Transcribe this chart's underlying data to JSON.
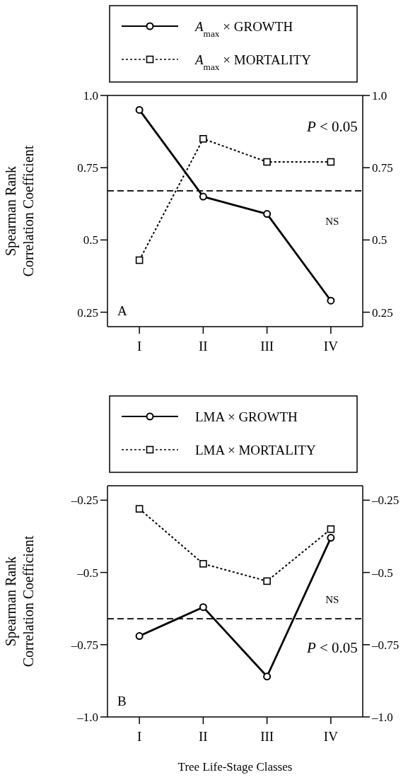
{
  "chart_data": [
    {
      "type": "line",
      "ylabel": "Spearman Rank\nCorrelation Coefficient",
      "categories": [
        "I",
        "II",
        "III",
        "IV"
      ],
      "series": [
        {
          "name": "A$_{max}$ × GROWTH",
          "color": "#000000",
          "values": [
            0.95,
            0.65,
            0.59,
            0.29
          ],
          "marker": "circle",
          "line_style": "solid"
        },
        {
          "name": "A$_{max}$ × MORTALITY",
          "color": "#000000",
          "values": [
            0.43,
            0.85,
            0.77,
            0.77
          ],
          "marker": "square",
          "line_style": "dotted"
        }
      ],
      "ylim": [
        0.2,
        1.0
      ],
      "yticks": [
        0.25,
        0.5,
        0.75,
        {
          "value": 1,
          "label": "1.0"
        }
      ],
      "y2lim": [
        0.2,
        1.0
      ],
      "y2ticks": [
        0.25,
        0.5,
        0.75,
        {
          "value": 1,
          "label": "1.0"
        }
      ],
      "ref_lines": [
        {
          "axis": "y",
          "value": 0.67,
          "color": "#000000",
          "line_style": "dashed"
        }
      ],
      "annotations": [
        "P < 0.05",
        "NS",
        "A"
      ],
      "legend": "top",
      "grid": false
    },
    {
      "type": "line",
      "ylabel": "Spearman Rank\nCorrelation Coefficient",
      "xlabel": "Tree Life-Stage Classes",
      "categories": [
        "I",
        "II",
        "III",
        "IV"
      ],
      "series": [
        {
          "name": "LMA × GROWTH",
          "color": "#000000",
          "values": [
            -0.72,
            -0.62,
            -0.86,
            -0.38
          ],
          "marker": "circle",
          "line_style": "solid"
        },
        {
          "name": "LMA × MORTALITY",
          "color": "#000000",
          "values": [
            -0.28,
            -0.47,
            -0.53,
            -0.35
          ],
          "marker": "square",
          "line_style": "dotted"
        }
      ],
      "ylim": [
        -1.0,
        -0.2
      ],
      "yticks": [
        {
          "value": -1,
          "label": "–1.0"
        },
        {
          "value": -0.75,
          "label": "–0.75"
        },
        {
          "value": -0.5,
          "label": "–0.5"
        },
        {
          "value": -0.25,
          "label": "–0.25"
        }
      ],
      "y2lim": [
        -1.0,
        -0.2
      ],
      "y2ticks": [
        {
          "value": -1,
          "label": "–1.0"
        },
        {
          "value": -0.75,
          "label": "–0.75"
        },
        {
          "value": -0.5,
          "label": "–0.5"
        },
        {
          "value": -0.25,
          "label": "–0.25"
        }
      ],
      "ref_lines": [
        {
          "axis": "y",
          "value": -0.66,
          "color": "#000000",
          "line_style": "dashed"
        }
      ],
      "annotations": [
        "NS",
        "P < 0.05",
        "B"
      ],
      "legend": "top",
      "grid": false
    }
  ]
}
